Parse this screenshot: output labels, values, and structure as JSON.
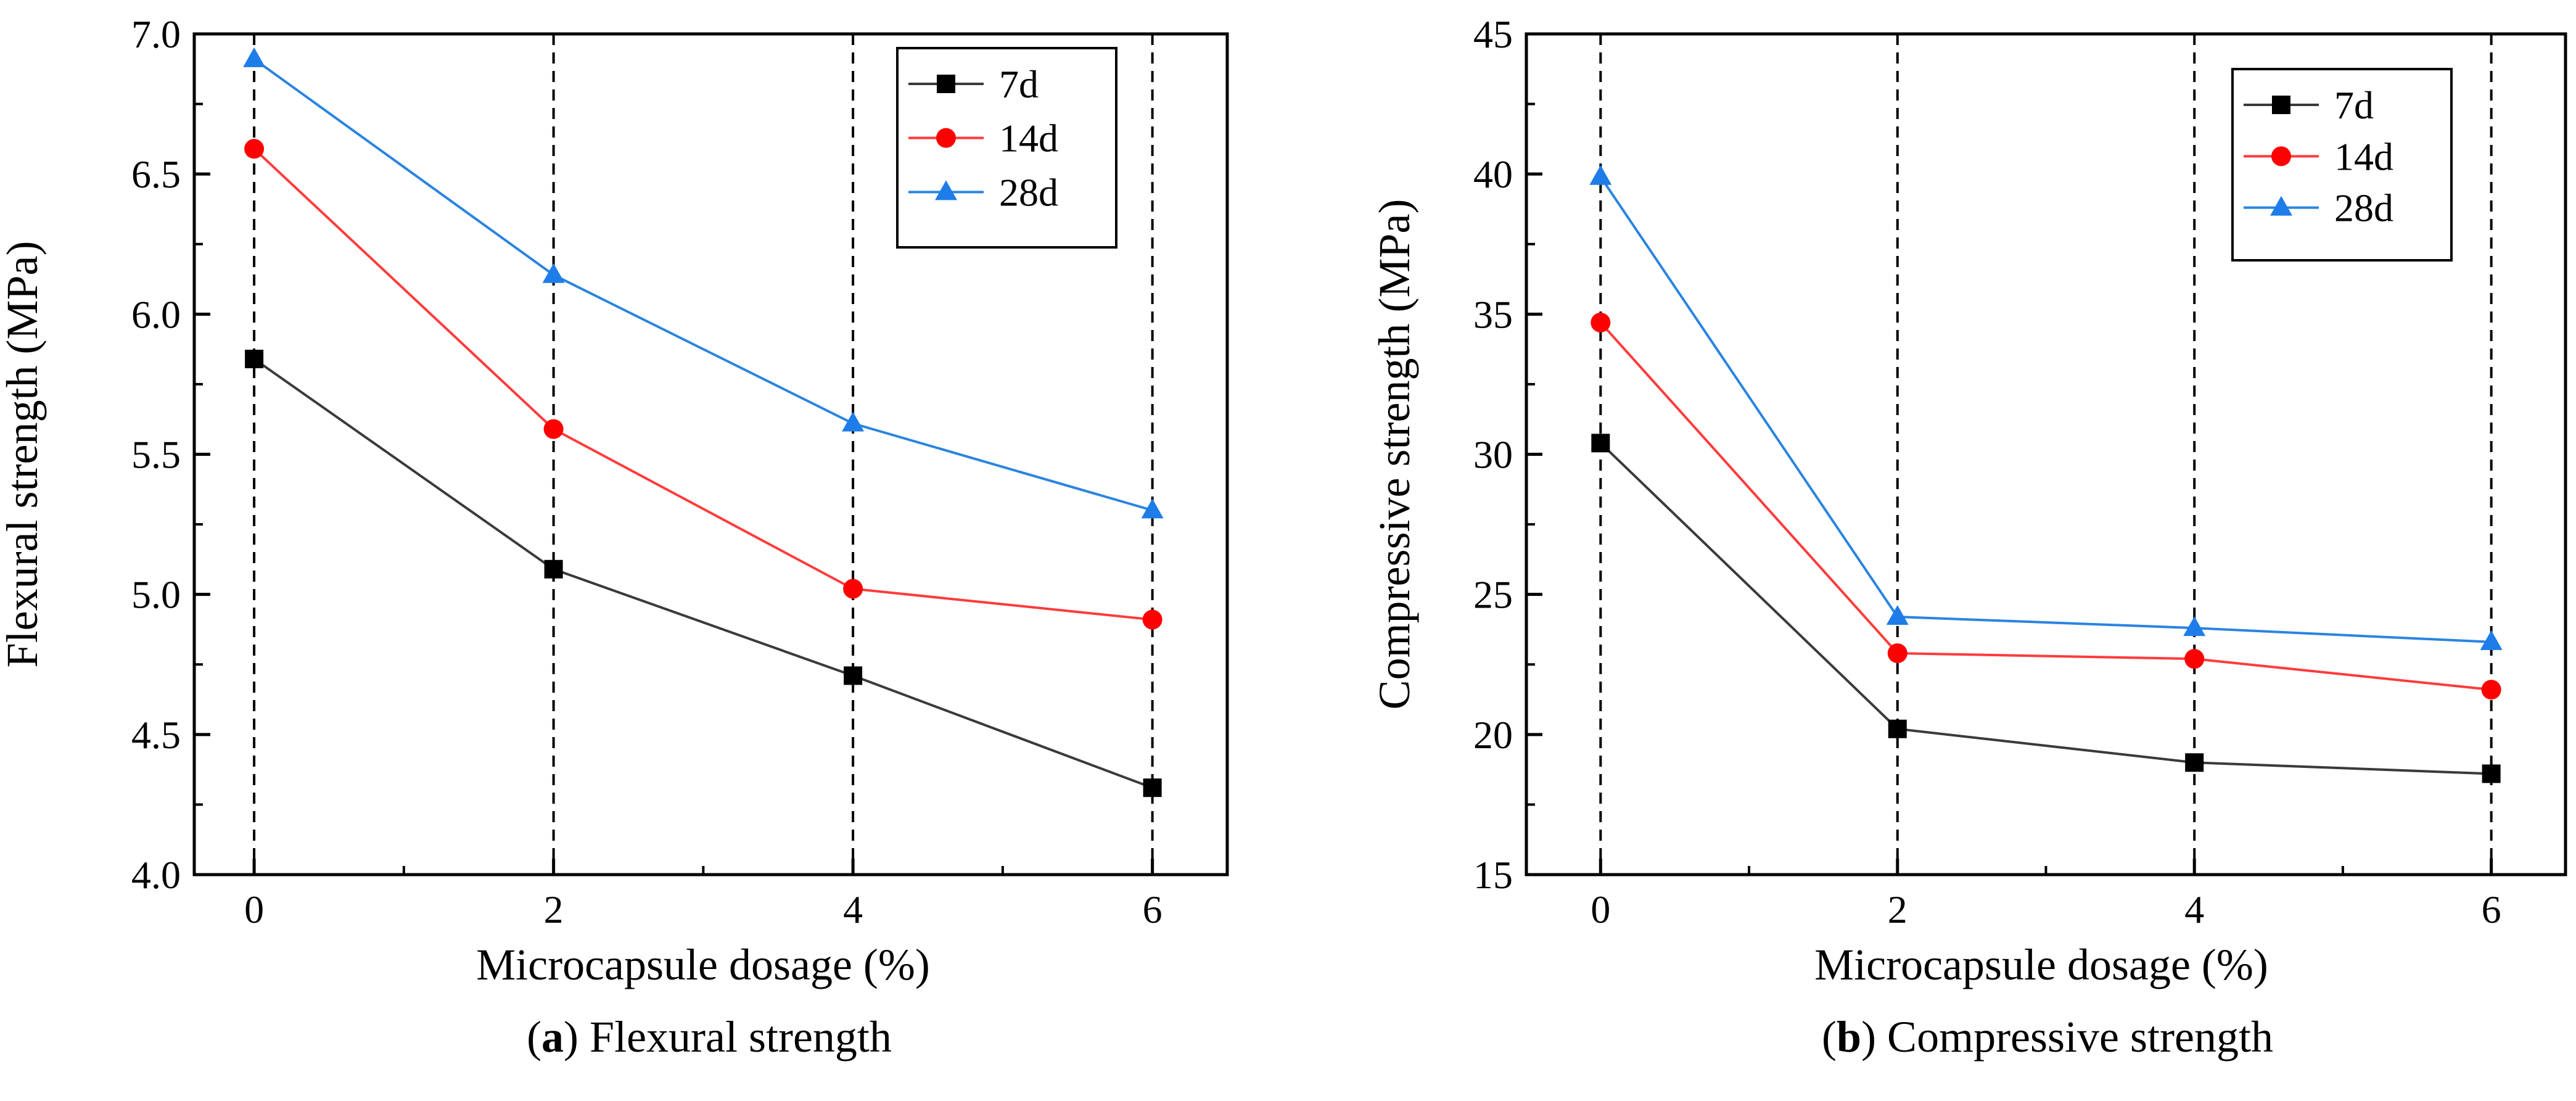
{
  "chart_data": [
    {
      "type": "line",
      "panel": "a",
      "caption_letter": "a",
      "caption_open": "(",
      "caption_close": ")",
      "caption_text": "Flexural strength",
      "xlabel": "Microcapsule dosage (%)",
      "ylabel": "Flexural strength (MPa)",
      "x": [
        0,
        2,
        4,
        6
      ],
      "xlim": [
        -0.4,
        6.5
      ],
      "ylim": [
        4.0,
        7.0
      ],
      "xticks": [
        0,
        2,
        4,
        6
      ],
      "yticks": [
        4.0,
        4.5,
        5.0,
        5.5,
        6.0,
        6.5,
        7.0
      ],
      "ytick_labels": [
        "4.0",
        "4.5",
        "5.0",
        "5.5",
        "6.0",
        "6.5",
        "7.0"
      ],
      "legend_position": "top-right",
      "grid": "vertical dashed lines at x ticks",
      "series": [
        {
          "name": "7d",
          "color": "#3a3a3a",
          "marker_color": "#000000",
          "marker": "square",
          "values": [
            5.84,
            5.09,
            4.71,
            4.31
          ]
        },
        {
          "name": "14d",
          "color": "#ff3b3b",
          "marker_color": "#ff0000",
          "marker": "circle",
          "values": [
            6.59,
            5.59,
            5.02,
            4.91
          ]
        },
        {
          "name": "28d",
          "color": "#2a84e0",
          "marker_color": "#1e7de8",
          "marker": "triangle",
          "values": [
            6.91,
            6.14,
            5.61,
            5.3
          ]
        }
      ]
    },
    {
      "type": "line",
      "panel": "b",
      "caption_letter": "b",
      "caption_open": "(",
      "caption_close": ")",
      "caption_text": "Compressive strength",
      "xlabel": "Microcapsule dosage (%)",
      "ylabel": "Compressive strength (MPa)",
      "x": [
        0,
        2,
        4,
        6
      ],
      "xlim": [
        -0.5,
        6.5
      ],
      "ylim": [
        15,
        45
      ],
      "xticks": [
        0,
        2,
        4,
        6
      ],
      "yticks": [
        15,
        20,
        25,
        30,
        35,
        40,
        45
      ],
      "ytick_labels": [
        "15",
        "20",
        "25",
        "30",
        "35",
        "40",
        "45"
      ],
      "legend_position": "top-right",
      "grid": "vertical dashed lines at x ticks",
      "series": [
        {
          "name": "7d",
          "color": "#3a3a3a",
          "marker_color": "#000000",
          "marker": "square",
          "values": [
            30.4,
            20.2,
            19.0,
            18.6
          ]
        },
        {
          "name": "14d",
          "color": "#ff3b3b",
          "marker_color": "#ff0000",
          "marker": "circle",
          "values": [
            34.7,
            22.9,
            22.7,
            21.6
          ]
        },
        {
          "name": "28d",
          "color": "#2a84e0",
          "marker_color": "#1e7de8",
          "marker": "triangle",
          "values": [
            39.9,
            24.2,
            23.8,
            23.3
          ]
        }
      ]
    }
  ]
}
